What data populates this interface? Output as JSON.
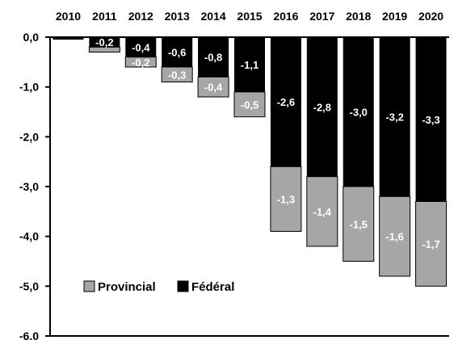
{
  "chart_data": {
    "type": "bar",
    "stacked": true,
    "categories": [
      "2010",
      "2011",
      "2012",
      "2013",
      "2014",
      "2015",
      "2016",
      "2017",
      "2018",
      "2019",
      "2020"
    ],
    "series": [
      {
        "name": "Fédéral",
        "color": "#000000",
        "values": [
          -0.05,
          -0.2,
          -0.4,
          -0.6,
          -0.8,
          -1.1,
          -2.6,
          -2.8,
          -3.0,
          -3.2,
          -3.3
        ],
        "labels": [
          "",
          "-0,2",
          "-0,4",
          "-0,6",
          "-0,8",
          "-1,1",
          "-2,6",
          "-2,8",
          "-3,0",
          "-3,2",
          "-3,3"
        ]
      },
      {
        "name": "Provincial",
        "color": "#a6a6a6",
        "values": [
          0,
          -0.1,
          -0.2,
          -0.3,
          -0.4,
          -0.5,
          -1.3,
          -1.4,
          -1.5,
          -1.6,
          -1.7
        ],
        "labels": [
          "",
          "",
          "-0,2",
          "-0,3",
          "-0,4",
          "-0,5",
          "-1,3",
          "-1,4",
          "-1,5",
          "-1,6",
          "-1,7"
        ]
      }
    ],
    "y_ticks": [
      "0,0",
      "-1,0",
      "-2,0",
      "-3,0",
      "-4,0",
      "-5,0",
      "-6,0"
    ],
    "ylim": [
      -6,
      0
    ],
    "x_axis_position": "top",
    "grid": false,
    "legend_position": "bottom-left",
    "legend_order": [
      "Provincial",
      "Fédéral"
    ],
    "title": "",
    "xlabel": "",
    "ylabel": ""
  }
}
